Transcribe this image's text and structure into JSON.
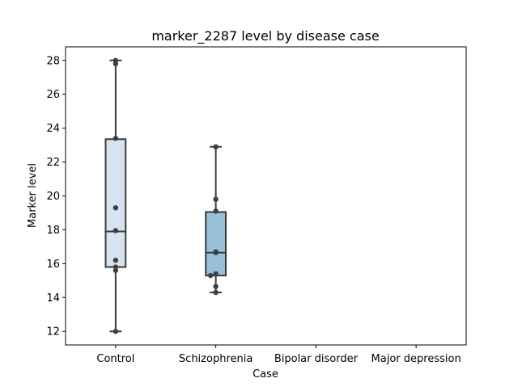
{
  "chart_data": {
    "type": "box",
    "title": "marker_2287 level by disease case",
    "xlabel": "Case",
    "ylabel": "Marker level",
    "categories": [
      "Control",
      "Schizophrenia",
      "Bipolar disorder",
      "Major depression"
    ],
    "ylim": [
      11.2,
      28.8
    ],
    "yticks": [
      12,
      14,
      16,
      18,
      20,
      22,
      24,
      26,
      28
    ],
    "boxes": [
      {
        "category": "Control",
        "whisker_low": 12.0,
        "q1": 15.8,
        "median": 17.9,
        "q3": 23.35,
        "whisker_high": 28.0,
        "color": "#d6e4f1"
      },
      {
        "category": "Schizophrenia",
        "whisker_low": 14.3,
        "q1": 15.3,
        "median": 16.65,
        "q3": 19.05,
        "whisker_high": 22.9,
        "color": "#99c0d8"
      }
    ],
    "points": [
      {
        "category": "Control",
        "values": [
          28.0,
          27.8,
          23.4,
          19.3,
          17.95,
          16.2,
          15.8,
          15.6,
          12.0
        ]
      },
      {
        "category": "Schizophrenia",
        "values": [
          22.9,
          19.8,
          19.1,
          16.7,
          16.65,
          15.4,
          15.3,
          14.65,
          14.3
        ]
      }
    ],
    "grid": false,
    "legend": "none"
  }
}
